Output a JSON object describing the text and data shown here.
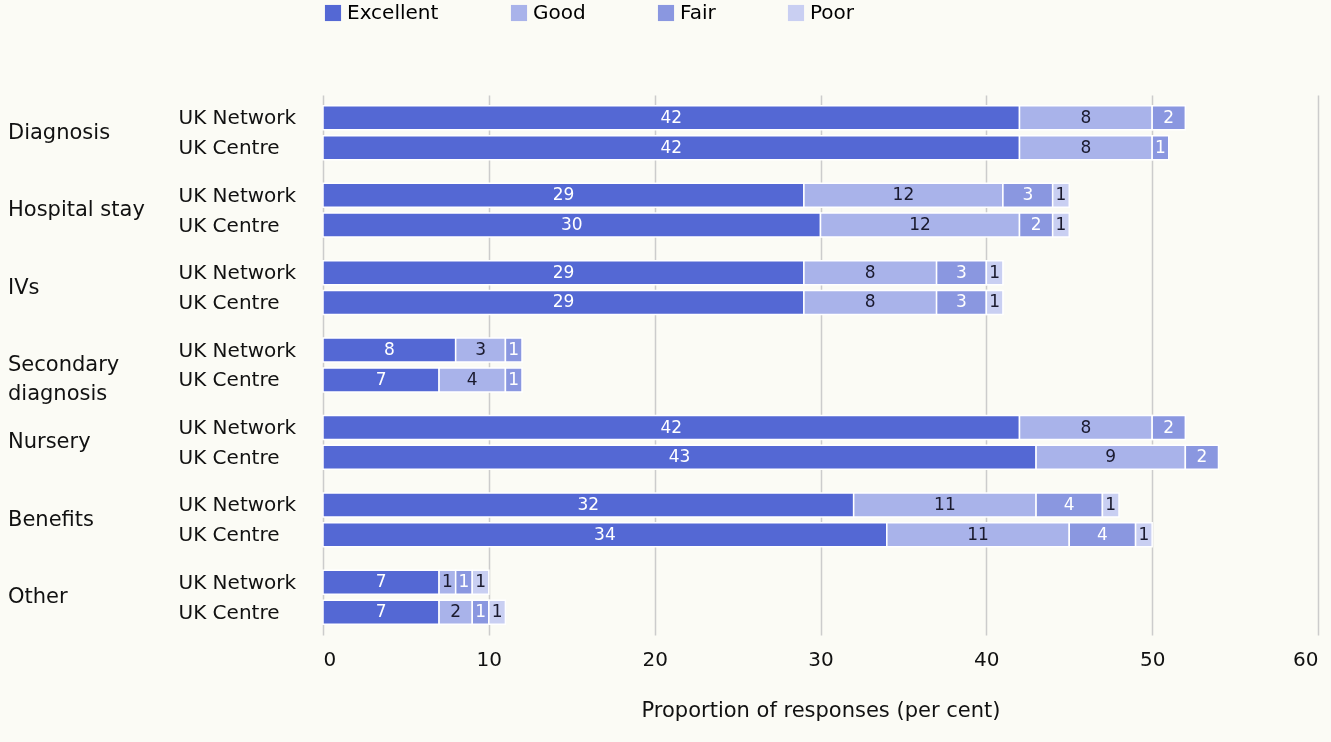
{
  "chart_data": {
    "type": "bar",
    "orientation": "horizontal",
    "stacked": true,
    "data_labels": true,
    "categories": [
      "UK Network",
      "UK Centre",
      "UK Network",
      "UK Centre",
      "UK Network",
      "UK Centre",
      "UK Network",
      "UK Centre",
      "UK Network",
      "UK Centre",
      "UK Network",
      "UK Centre",
      "UK Network",
      "UK Centre"
    ],
    "annotations": [
      "Diagnosis",
      "Hospital stay",
      "IVs",
      "Secondary diagnosis",
      "Nursery",
      "Benefits",
      "Other"
    ],
    "series": [
      {
        "name": "Excellent",
        "color": "#5468d4",
        "values": [
          42,
          42,
          29,
          30,
          29,
          29,
          8,
          7,
          42,
          43,
          32,
          34,
          7,
          7
        ]
      },
      {
        "name": "Good",
        "color": "#a9b3ea",
        "values": [
          8,
          8,
          12,
          12,
          8,
          8,
          3,
          4,
          8,
          9,
          11,
          11,
          1,
          2
        ]
      },
      {
        "name": "Fair",
        "color": "#8a97e0",
        "values": [
          2,
          1,
          3,
          2,
          3,
          3,
          1,
          1,
          2,
          2,
          4,
          4,
          1,
          1
        ]
      },
      {
        "name": "Poor",
        "color": "#c9cff2",
        "values": [
          null,
          null,
          1,
          1,
          1,
          1,
          null,
          null,
          null,
          null,
          1,
          1,
          1,
          1
        ]
      }
    ],
    "xlabel": "Proportion of responses (per cent)",
    "xlim": [
      0,
      60
    ],
    "xticks": [
      0,
      10,
      20,
      30,
      40,
      50,
      60
    ],
    "grid": "x",
    "legend": "top"
  }
}
